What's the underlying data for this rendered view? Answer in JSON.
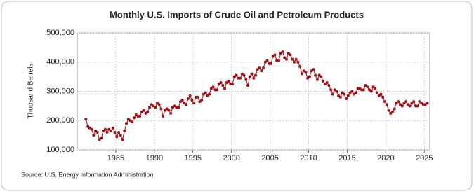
{
  "chart_data": {
    "type": "line",
    "title": "Monthly U.S. Imports of Crude Oil and Petroleum Products",
    "y_label": "Thousand Barrels",
    "source": "Source: U.S. Energy Information Administration",
    "xlim": [
      1980,
      2025.7
    ],
    "xticks": [
      1985,
      1990,
      1995,
      2000,
      2005,
      2010,
      2015,
      2020,
      2025
    ],
    "ylim": [
      100000,
      500000
    ],
    "yticks": [
      {
        "value": 100000,
        "label": "100,000"
      },
      {
        "value": 200000,
        "label": "200,000"
      },
      {
        "value": 300000,
        "label": "300,000"
      },
      {
        "value": 400000,
        "label": "400,000"
      },
      {
        "value": 500000,
        "label": "500,000"
      }
    ],
    "grid": true,
    "x": [
      1981.125,
      1981.375,
      1981.625,
      1981.875,
      1982.125,
      1982.375,
      1982.625,
      1982.875,
      1983.125,
      1983.375,
      1983.625,
      1983.875,
      1984.125,
      1984.375,
      1984.625,
      1984.875,
      1985.125,
      1985.375,
      1985.625,
      1985.875,
      1986.125,
      1986.375,
      1986.625,
      1986.875,
      1987.125,
      1987.375,
      1987.625,
      1987.875,
      1988.125,
      1988.375,
      1988.625,
      1988.875,
      1989.125,
      1989.375,
      1989.625,
      1989.875,
      1990.125,
      1990.375,
      1990.625,
      1990.875,
      1991.125,
      1991.375,
      1991.625,
      1991.875,
      1992.125,
      1992.375,
      1992.625,
      1992.875,
      1993.125,
      1993.375,
      1993.625,
      1993.875,
      1994.125,
      1994.375,
      1994.625,
      1994.875,
      1995.125,
      1995.375,
      1995.625,
      1995.875,
      1996.125,
      1996.375,
      1996.625,
      1996.875,
      1997.125,
      1997.375,
      1997.625,
      1997.875,
      1998.125,
      1998.375,
      1998.625,
      1998.875,
      1999.125,
      1999.375,
      1999.625,
      1999.875,
      2000.125,
      2000.375,
      2000.625,
      2000.875,
      2001.125,
      2001.375,
      2001.625,
      2001.875,
      2002.125,
      2002.375,
      2002.625,
      2002.875,
      2003.125,
      2003.375,
      2003.625,
      2003.875,
      2004.125,
      2004.375,
      2004.625,
      2004.875,
      2005.125,
      2005.375,
      2005.625,
      2005.875,
      2006.125,
      2006.375,
      2006.625,
      2006.875,
      2007.125,
      2007.375,
      2007.625,
      2007.875,
      2008.125,
      2008.375,
      2008.625,
      2008.875,
      2009.125,
      2009.375,
      2009.625,
      2009.875,
      2010.125,
      2010.375,
      2010.625,
      2010.875,
      2011.125,
      2011.375,
      2011.625,
      2011.875,
      2012.125,
      2012.375,
      2012.625,
      2012.875,
      2013.125,
      2013.375,
      2013.625,
      2013.875,
      2014.125,
      2014.375,
      2014.625,
      2014.875,
      2015.125,
      2015.375,
      2015.625,
      2015.875,
      2016.125,
      2016.375,
      2016.625,
      2016.875,
      2017.125,
      2017.375,
      2017.625,
      2017.875,
      2018.125,
      2018.375,
      2018.625,
      2018.875,
      2019.125,
      2019.375,
      2019.625,
      2019.875,
      2020.125,
      2020.375,
      2020.625,
      2020.875,
      2021.125,
      2021.375,
      2021.625,
      2021.875,
      2022.125,
      2022.375,
      2022.625,
      2022.875,
      2023.125,
      2023.375,
      2023.625,
      2023.875,
      2024.125,
      2024.375,
      2024.625,
      2024.875,
      2025.125,
      2025.375
    ],
    "series": [
      {
        "color": "#a50f15",
        "values": [
          205000,
          180000,
          175000,
          170000,
          150000,
          165000,
          160000,
          135000,
          140000,
          165000,
          170000,
          160000,
          170000,
          165000,
          175000,
          160000,
          145000,
          160000,
          150000,
          135000,
          165000,
          190000,
          205000,
          200000,
          195000,
          210000,
          220000,
          215000,
          215000,
          230000,
          235000,
          225000,
          230000,
          245000,
          255000,
          250000,
          245000,
          260000,
          255000,
          240000,
          215000,
          235000,
          240000,
          235000,
          225000,
          245000,
          250000,
          245000,
          245000,
          265000,
          270000,
          260000,
          255000,
          275000,
          285000,
          270000,
          260000,
          280000,
          280000,
          265000,
          270000,
          290000,
          295000,
          285000,
          290000,
          310000,
          315000,
          305000,
          305000,
          325000,
          330000,
          320000,
          310000,
          330000,
          335000,
          325000,
          325000,
          350000,
          355000,
          345000,
          345000,
          360000,
          355000,
          340000,
          320000,
          350000,
          360000,
          345000,
          355000,
          375000,
          380000,
          370000,
          380000,
          400000,
          405000,
          395000,
          395000,
          420000,
          425000,
          405000,
          405000,
          430000,
          435000,
          415000,
          410000,
          430000,
          425000,
          410000,
          400000,
          410000,
          400000,
          385000,
          360000,
          370000,
          365000,
          345000,
          350000,
          370000,
          375000,
          355000,
          340000,
          355000,
          350000,
          335000,
          325000,
          330000,
          320000,
          305000,
          290000,
          305000,
          300000,
          285000,
          280000,
          295000,
          290000,
          275000,
          285000,
          295000,
          300000,
          290000,
          295000,
          310000,
          310000,
          305000,
          305000,
          320000,
          315000,
          305000,
          300000,
          315000,
          310000,
          295000,
          285000,
          290000,
          280000,
          265000,
          255000,
          235000,
          225000,
          230000,
          240000,
          260000,
          265000,
          255000,
          250000,
          260000,
          265000,
          255000,
          250000,
          260000,
          265000,
          250000,
          250000,
          265000,
          260000,
          255000,
          255000,
          260000
        ]
      }
    ]
  }
}
